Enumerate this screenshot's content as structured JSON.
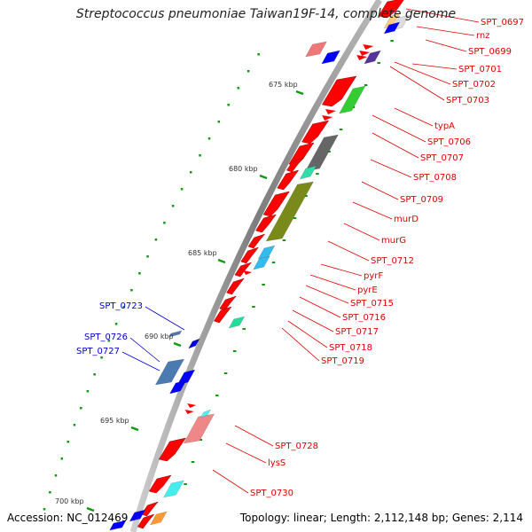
{
  "title": "Streptococcus pneumoniae Taiwan19F-14, complete genome",
  "footer": {
    "accession": "Accession: NC_012469",
    "topology": "Topology: linear; Length: 2,112,148 bp; Genes: 2,114"
  },
  "colors": {
    "forward_gene": "#ff0000",
    "pseudo_gene": "#ee8888",
    "backbone": "#888888",
    "label_red": "#dd0000",
    "label_blue": "#0000cc",
    "dots": "#119911"
  },
  "scale_labels": [
    "675 kbp",
    "680 kbp",
    "685 kbp",
    "690 kbp",
    "695 kbp",
    "700 kbp"
  ],
  "gene_labels_right": [
    "SPT_0697",
    "rnz",
    "SPT_0699",
    "SPT_0701",
    "SPT_0702",
    "SPT_0703",
    "typA",
    "SPT_0706",
    "SPT_0707",
    "SPT_0708",
    "SPT_0709",
    "murD",
    "murG",
    "SPT_0712",
    "pyrF",
    "pyrE",
    "SPT_0715",
    "SPT_0716",
    "SPT_0717",
    "SPT_0718",
    "SPT_0719",
    "SPT_0728",
    "lysS",
    "SPT_0730"
  ],
  "gene_labels_left": [
    "SPT_0723",
    "SPT_0726",
    "SPT_0727"
  ]
}
